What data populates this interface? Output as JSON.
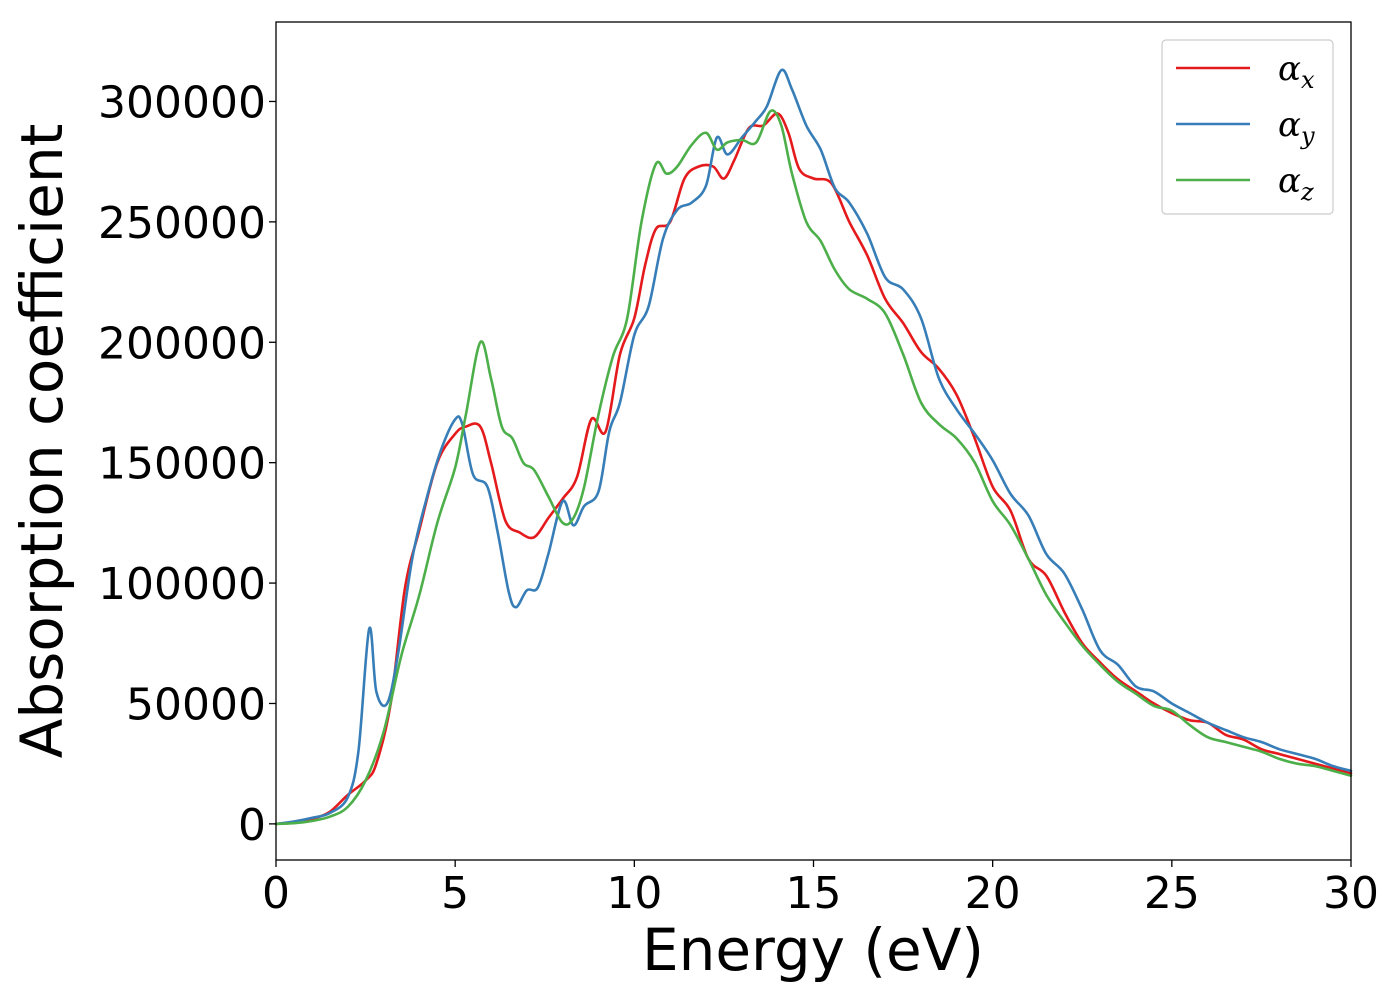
{
  "chart_data": {
    "type": "line",
    "xlabel": "Energy (eV)",
    "ylabel": "Absorption coefficient",
    "xlim": [
      0,
      30
    ],
    "ylim": [
      -15000,
      333000
    ],
    "xticks": [
      0,
      5,
      10,
      15,
      20,
      25,
      30
    ],
    "xtick_labels": [
      "0",
      "5",
      "10",
      "15",
      "20",
      "25",
      "30"
    ],
    "yticks": [
      0,
      50000,
      100000,
      150000,
      200000,
      250000,
      300000
    ],
    "ytick_labels": [
      "0",
      "50000",
      "100000",
      "150000",
      "200000",
      "250000",
      "300000"
    ],
    "grid": false,
    "legend_position": "top-right",
    "series": [
      {
        "name": "α",
        "sub": "x",
        "color": "#e41a1c",
        "x": [
          0,
          0.5,
          1,
          1.5,
          2,
          2.5,
          2.8,
          3.2,
          3.6,
          4,
          4.5,
          5,
          5.3,
          5.7,
          6,
          6.4,
          6.8,
          7.2,
          7.6,
          8,
          8.4,
          8.8,
          9.2,
          9.6,
          10,
          10.3,
          10.6,
          11,
          11.4,
          11.8,
          12.2,
          12.5,
          12.8,
          13.2,
          13.6,
          14,
          14.3,
          14.6,
          15,
          15.5,
          16,
          16.5,
          17,
          17.5,
          18,
          18.5,
          19,
          19.5,
          20,
          20.5,
          21,
          21.5,
          22,
          22.5,
          23,
          23.5,
          24,
          24.5,
          25,
          25.5,
          26,
          26.5,
          27,
          27.5,
          28,
          28.5,
          29,
          29.5,
          30
        ],
        "values": [
          0,
          500,
          2000,
          5000,
          12000,
          18000,
          25000,
          50000,
          98000,
          122000,
          150000,
          162000,
          165000,
          165000,
          150000,
          126000,
          121000,
          119000,
          127000,
          135000,
          144000,
          168000,
          163000,
          195000,
          210000,
          232000,
          247000,
          250000,
          268000,
          273000,
          273000,
          268000,
          276000,
          289000,
          290000,
          295000,
          287000,
          272000,
          268000,
          266000,
          250000,
          236000,
          218000,
          208000,
          196000,
          189000,
          178000,
          160000,
          140000,
          130000,
          110000,
          103000,
          88000,
          75000,
          67000,
          60000,
          55000,
          50000,
          46000,
          43000,
          42000,
          37000,
          35000,
          31000,
          29000,
          27000,
          25000,
          23000,
          21000
        ]
      },
      {
        "name": "α",
        "sub": "y",
        "color": "#377eb8",
        "x": [
          0,
          0.5,
          1,
          1.5,
          2,
          2.3,
          2.6,
          2.8,
          3.1,
          3.4,
          3.8,
          4.2,
          4.6,
          5,
          5.2,
          5.5,
          5.9,
          6.2,
          6.5,
          6.7,
          7,
          7.3,
          7.6,
          8,
          8.3,
          8.6,
          9,
          9.3,
          9.6,
          10,
          10.4,
          10.8,
          11.2,
          11.6,
          12,
          12.3,
          12.6,
          13,
          13.4,
          13.7,
          14.1,
          14.4,
          14.8,
          15.2,
          15.6,
          16,
          16.5,
          17,
          17.5,
          18,
          18.5,
          19,
          19.5,
          20,
          20.5,
          21,
          21.5,
          22,
          22.5,
          23,
          23.5,
          24,
          24.5,
          25,
          25.5,
          26,
          26.5,
          27,
          27.5,
          28,
          28.5,
          29,
          29.5,
          30
        ],
        "values": [
          0,
          1000,
          2500,
          4500,
          11000,
          30000,
          81000,
          55000,
          50000,
          70000,
          110000,
          135000,
          155000,
          168000,
          166000,
          145000,
          140000,
          120000,
          96000,
          90000,
          97000,
          98000,
          112000,
          134000,
          124000,
          132000,
          138000,
          163000,
          175000,
          203000,
          215000,
          243000,
          255000,
          258000,
          265000,
          285000,
          278000,
          285000,
          292000,
          298000,
          313000,
          305000,
          290000,
          280000,
          264000,
          258000,
          245000,
          227000,
          222000,
          210000,
          185000,
          172000,
          162000,
          151000,
          137000,
          128000,
          112000,
          104000,
          89000,
          72000,
          66000,
          57000,
          55000,
          50000,
          46000,
          42000,
          39000,
          36000,
          34000,
          31000,
          29000,
          27000,
          24000,
          22000
        ]
      },
      {
        "name": "α",
        "sub": "z",
        "color": "#4daf4a",
        "x": [
          0,
          0.5,
          1,
          1.5,
          2,
          2.5,
          3,
          3.5,
          4,
          4.5,
          5,
          5.3,
          5.7,
          6,
          6.3,
          6.6,
          6.9,
          7.2,
          7.6,
          8,
          8.3,
          8.6,
          9,
          9.4,
          9.8,
          10.2,
          10.6,
          10.9,
          11.2,
          11.6,
          12,
          12.3,
          12.6,
          13,
          13.4,
          13.8,
          14.1,
          14.4,
          14.8,
          15.2,
          15.6,
          16,
          16.5,
          17,
          17.5,
          18,
          18.5,
          19,
          19.5,
          20,
          20.5,
          21,
          21.5,
          22,
          22.5,
          23,
          23.5,
          24,
          24.5,
          25,
          25.5,
          26,
          26.5,
          27,
          27.5,
          28,
          28.5,
          29,
          29.5,
          30
        ],
        "values": [
          0,
          300,
          1200,
          3000,
          7000,
          18000,
          38000,
          70000,
          95000,
          125000,
          148000,
          170000,
          200000,
          185000,
          165000,
          160000,
          150000,
          147000,
          136000,
          125000,
          127000,
          140000,
          170000,
          194000,
          210000,
          250000,
          274000,
          270000,
          273000,
          282000,
          287000,
          280000,
          283000,
          284000,
          283000,
          296000,
          290000,
          270000,
          250000,
          242000,
          230000,
          222000,
          218000,
          212000,
          195000,
          175000,
          166000,
          160000,
          150000,
          134000,
          124000,
          110000,
          95000,
          84000,
          74000,
          66000,
          59000,
          54000,
          49000,
          47000,
          41000,
          36000,
          34000,
          32000,
          30000,
          27000,
          25000,
          24000,
          22000,
          20000
        ]
      }
    ]
  }
}
